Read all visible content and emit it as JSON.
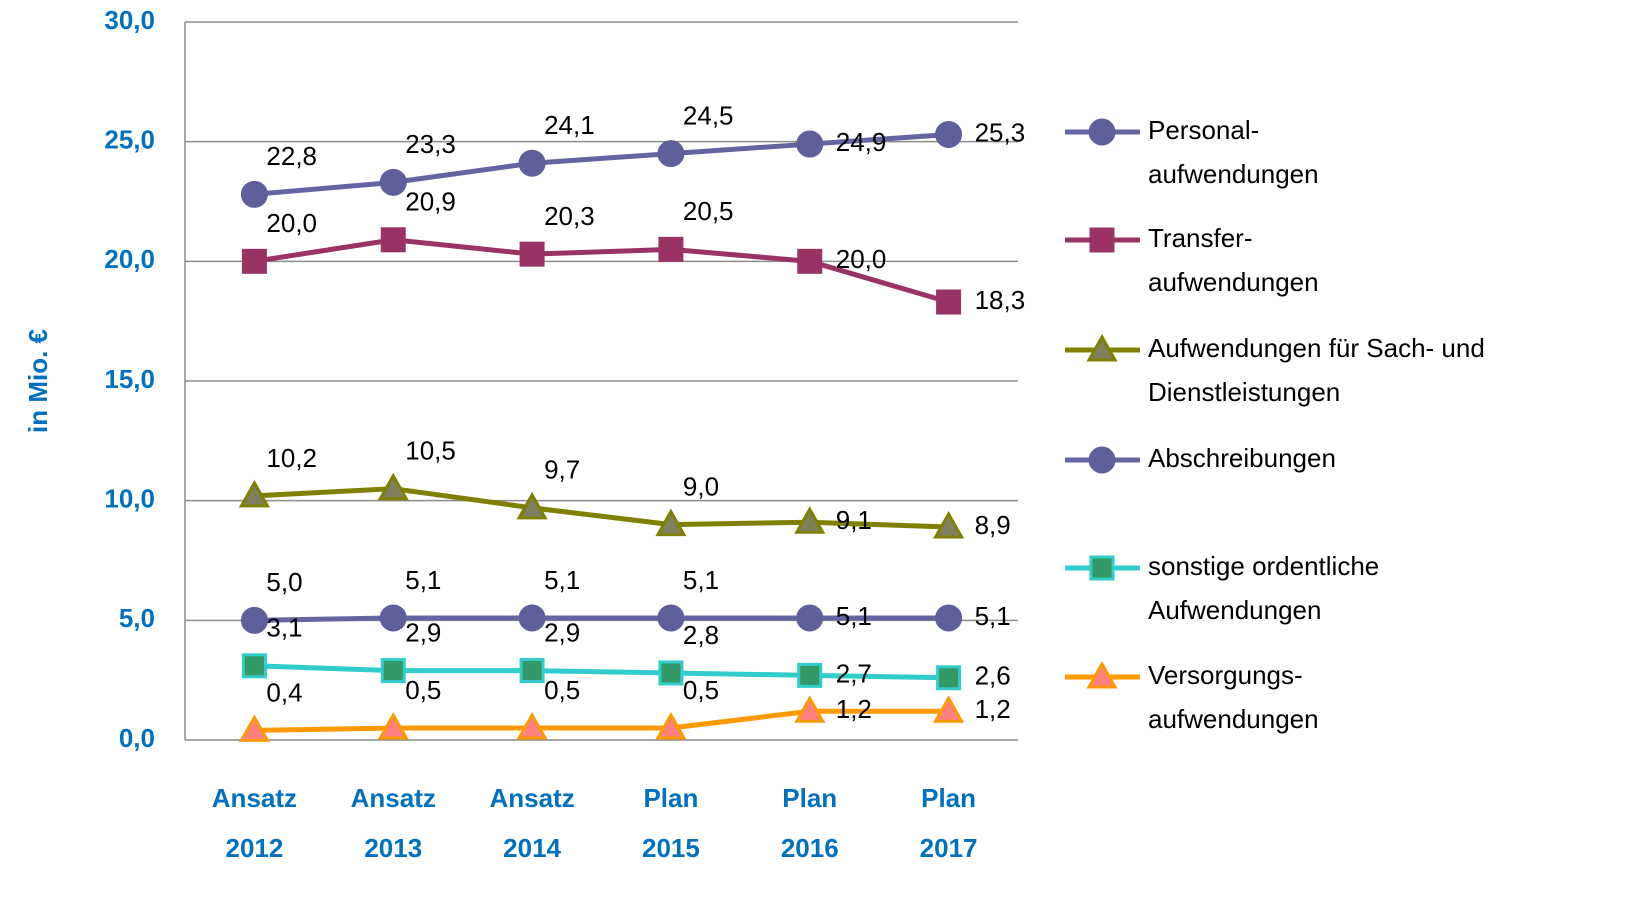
{
  "chart_data": {
    "type": "line",
    "y_label": "in Mio. €",
    "categories": [
      "Ansatz 2012",
      "Ansatz 2013",
      "Ansatz 2014",
      "Plan 2015",
      "Plan 2016",
      "Plan 2017"
    ],
    "ylim": [
      0,
      30
    ],
    "yticks": [
      {
        "value": 0,
        "label": "0,0"
      },
      {
        "value": 5,
        "label": "5,0"
      },
      {
        "value": 10,
        "label": "10,0"
      },
      {
        "value": 15,
        "label": "15,0"
      },
      {
        "value": 20,
        "label": "20,0"
      },
      {
        "value": 25,
        "label": "25,0"
      },
      {
        "value": 30,
        "label": "30,0"
      }
    ],
    "grid": true,
    "legend": "right",
    "series": [
      {
        "name": "Personal-\naufwendungen",
        "color": "#6464a0",
        "marker": "circle",
        "marker_fill": "#5f5f9c",
        "marker_stroke": "#5f5f9c",
        "values": [
          22.8,
          23.3,
          24.1,
          24.5,
          24.9,
          25.3
        ],
        "value_labels": [
          "22,8",
          "23,3",
          "24,1",
          "24,5",
          "24,9",
          "25,3"
        ]
      },
      {
        "name": "Transfer-\naufwendungen",
        "color": "#993366",
        "marker": "square",
        "marker_fill": "#993366",
        "marker_stroke": "#993366",
        "values": [
          20.0,
          20.9,
          20.3,
          20.5,
          20.0,
          18.3
        ],
        "value_labels": [
          "20,0",
          "20,9",
          "20,3",
          "20,5",
          "20,0",
          "18,3"
        ]
      },
      {
        "name": "Aufwendungen für Sach- und\nDienstleistungen",
        "color": "#808000",
        "marker": "triangle",
        "marker_fill": "#7f7f60",
        "marker_stroke": "#808000",
        "values": [
          10.2,
          10.5,
          9.7,
          9.0,
          9.1,
          8.9
        ],
        "value_labels": [
          "10,2",
          "10,5",
          "9,7",
          "9,0",
          "9,1",
          "8,9"
        ]
      },
      {
        "name": "Abschreibungen",
        "color": "#6464a0",
        "marker": "circle",
        "marker_fill": "#5f5f9c",
        "marker_stroke": "#5f5f9c",
        "values": [
          5.0,
          5.1,
          5.1,
          5.1,
          5.1,
          5.1
        ],
        "value_labels": [
          "5,0",
          "5,1",
          "5,1",
          "5,1",
          "5,1",
          "5,1"
        ]
      },
      {
        "name": "sonstige ordentliche\nAufwendungen",
        "color": "#33cccc",
        "marker": "square",
        "marker_fill": "#339966",
        "marker_stroke": "#33cccc",
        "values": [
          3.1,
          2.9,
          2.9,
          2.8,
          2.7,
          2.6
        ],
        "value_labels": [
          "3,1",
          "2,9",
          "2,9",
          "2,8",
          "2,7",
          "2,6"
        ]
      },
      {
        "name": "Versorgungs-\naufwendungen",
        "color": "#ff9900",
        "marker": "triangle",
        "marker_fill": "#ff8080",
        "marker_stroke": "#ff9900",
        "values": [
          0.4,
          0.5,
          0.5,
          0.5,
          1.2,
          1.2
        ],
        "value_labels": [
          "0,4",
          "0,5",
          "0,5",
          "0,5",
          "1,2",
          "1,2"
        ]
      }
    ]
  }
}
